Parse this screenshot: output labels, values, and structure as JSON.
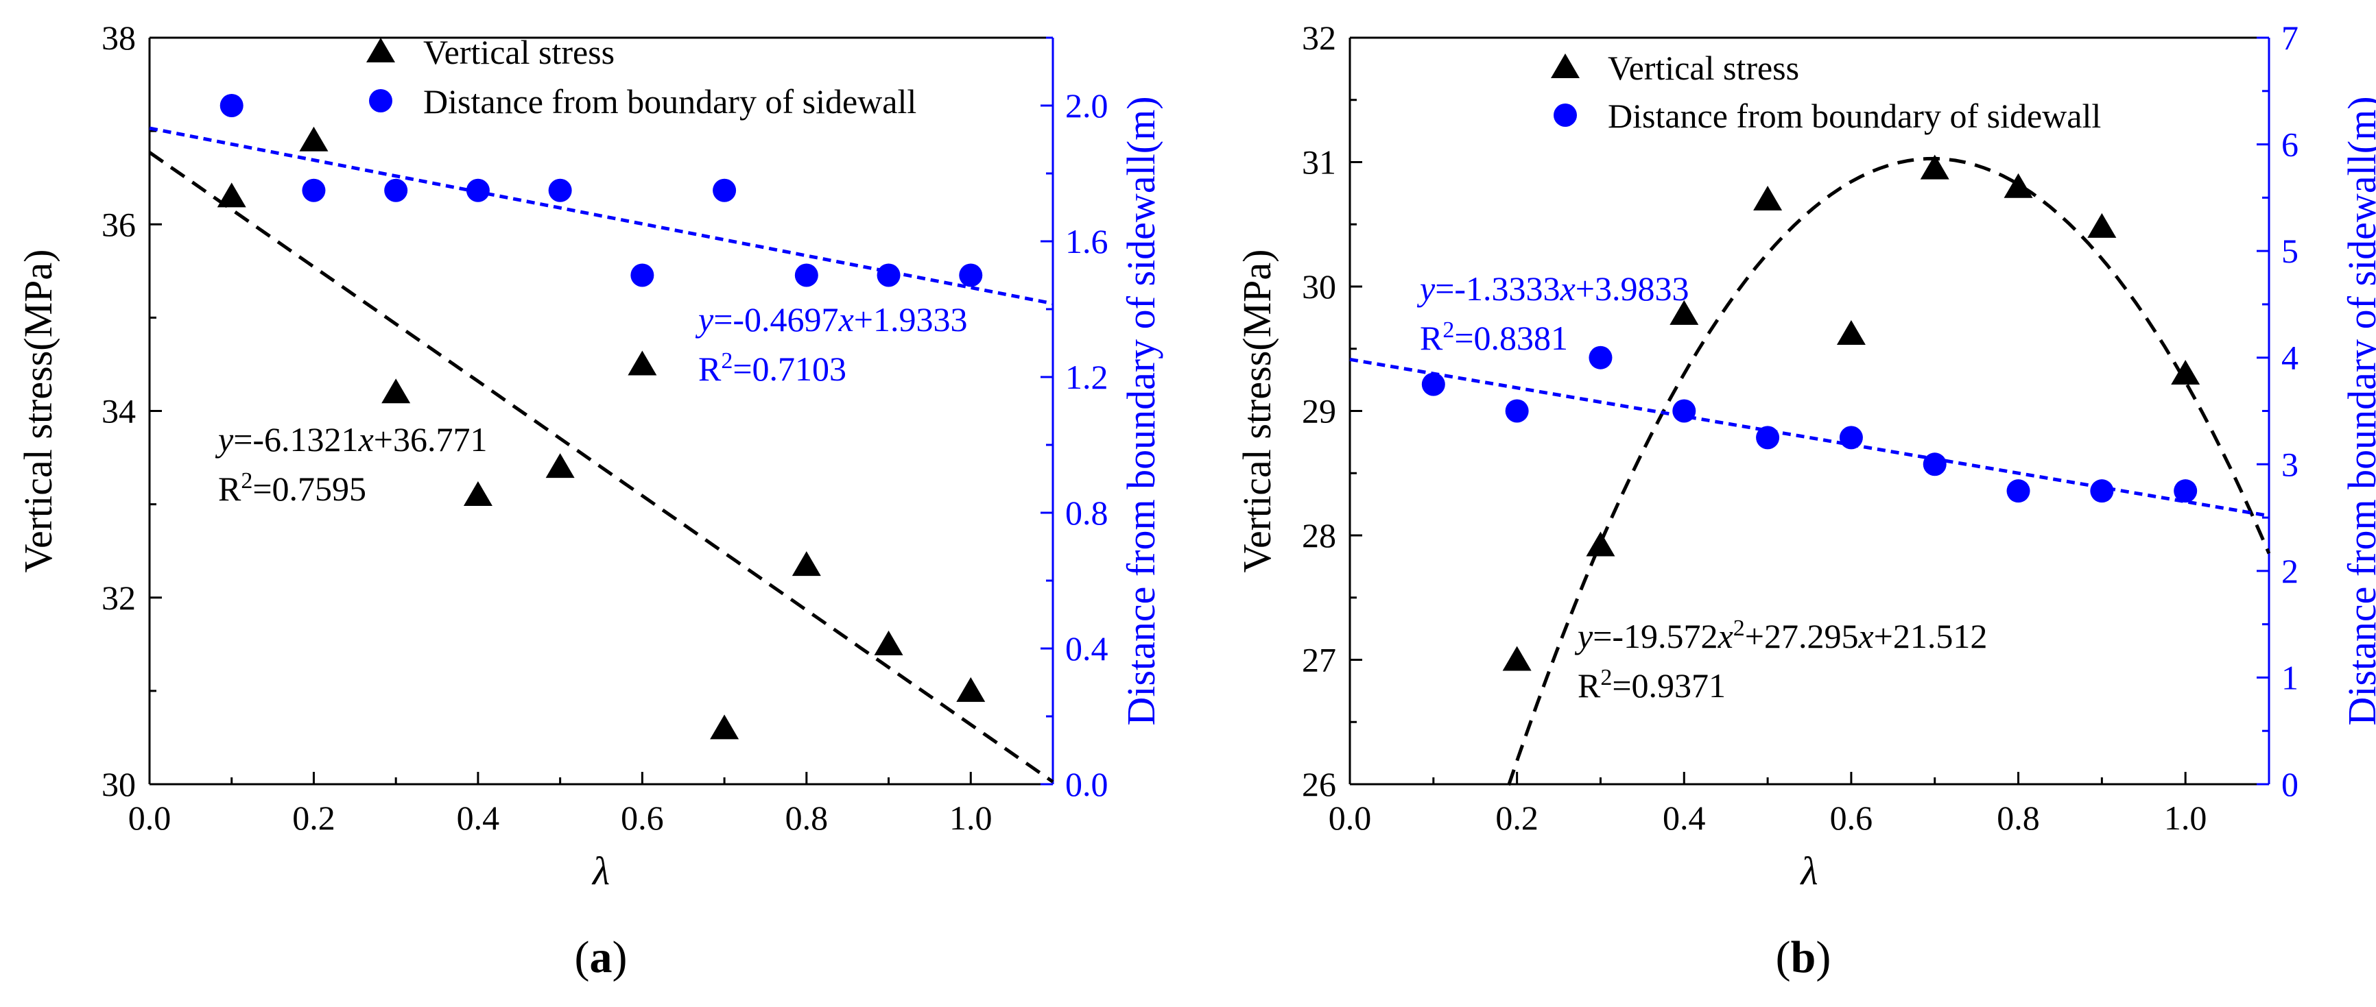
{
  "chart_data": [
    {
      "type": "scatter",
      "panel_label": {
        "open": "(",
        "letter": "a",
        "close": ")"
      },
      "xlabel": "λ",
      "ylabel": "Vertical stress(MPa)",
      "ylabel_right": "Distance from boundary of sidewall(m)",
      "xlim": [
        0,
        1.1
      ],
      "ylim": [
        30,
        38
      ],
      "ylim_right": [
        0,
        2.2
      ],
      "x_ticks": [
        0.0,
        0.2,
        0.4,
        0.6,
        0.8,
        1.0
      ],
      "x_tick_labels": [
        "0.0",
        "0.2",
        "0.4",
        "0.6",
        "0.8",
        "1.0"
      ],
      "y_ticks": [
        30,
        32,
        34,
        36,
        38
      ],
      "y_tick_labels": [
        "30",
        "32",
        "34",
        "36",
        "38"
      ],
      "y_right_ticks": [
        0.0,
        0.4,
        0.8,
        1.2,
        1.6,
        2.0
      ],
      "y_right_tick_labels": [
        "0.0",
        "0.4",
        "0.8",
        "1.2",
        "1.6",
        "2.0"
      ],
      "legend_position": "top",
      "series": [
        {
          "name": "Vertical stress",
          "marker": "triangle",
          "color": "#000000",
          "axis": "left",
          "x": [
            0.1,
            0.2,
            0.3,
            0.4,
            0.5,
            0.6,
            0.7,
            0.8,
            0.9,
            1.0
          ],
          "y": [
            36.3,
            36.9,
            34.2,
            33.1,
            33.4,
            34.5,
            30.6,
            32.35,
            31.5,
            31.0
          ]
        },
        {
          "name": "Distance from boundary of sidewall",
          "marker": "circle",
          "color": "#0000ff",
          "axis": "right",
          "x": [
            0.1,
            0.2,
            0.3,
            0.4,
            0.5,
            0.6,
            0.7,
            0.8,
            0.9,
            1.0
          ],
          "y": [
            2.0,
            1.75,
            1.75,
            1.75,
            1.75,
            1.5,
            1.75,
            1.5,
            1.5,
            1.5
          ]
        }
      ],
      "fits": [
        {
          "axis": "left",
          "color": "#000000",
          "dash": "dashed",
          "coef": [
            36.771,
            -6.1321
          ],
          "x_range": [
            0,
            1.1
          ]
        },
        {
          "axis": "right",
          "color": "#0000ff",
          "dash": "dotted",
          "coef": [
            1.9333,
            -0.4697
          ],
          "x_range": [
            0,
            1.1
          ]
        }
      ],
      "annotations": [
        {
          "color": "#0000ff",
          "eq": "=-0.4697",
          "tail": "+1.9333",
          "r2": "=0.7103"
        },
        {
          "color": "#000000",
          "eq": "=-6.1321",
          "tail": "+36.771",
          "r2": "=0.7595"
        }
      ]
    },
    {
      "type": "scatter",
      "panel_label": {
        "open": "(",
        "letter": "b",
        "close": ")"
      },
      "xlabel": "λ",
      "ylabel": "Vertical stress(MPa)",
      "ylabel_right": "Distance from boundary of sidewall(m)",
      "xlim": [
        0,
        1.1
      ],
      "ylim": [
        26,
        32
      ],
      "ylim_right": [
        0,
        7
      ],
      "x_ticks": [
        0.0,
        0.2,
        0.4,
        0.6,
        0.8,
        1.0
      ],
      "x_tick_labels": [
        "0.0",
        "0.2",
        "0.4",
        "0.6",
        "0.8",
        "1.0"
      ],
      "y_ticks": [
        26,
        27,
        28,
        29,
        30,
        31,
        32
      ],
      "y_tick_labels": [
        "26",
        "27",
        "28",
        "29",
        "30",
        "31",
        "32"
      ],
      "y_right_ticks": [
        0,
        1,
        2,
        3,
        4,
        5,
        6,
        7
      ],
      "y_right_tick_labels": [
        "0",
        "1",
        "2",
        "3",
        "4",
        "5",
        "6",
        "7"
      ],
      "legend_position": "top",
      "series": [
        {
          "name": "Vertical stress",
          "marker": "triangle",
          "color": "#000000",
          "axis": "left",
          "x": [
            0.2,
            0.3,
            0.4,
            0.5,
            0.6,
            0.7,
            0.8,
            0.9,
            1.0
          ],
          "y": [
            27.0,
            27.92,
            29.78,
            30.7,
            29.62,
            30.95,
            30.8,
            30.48,
            29.3
          ]
        },
        {
          "name": "Distance from boundary of sidewall",
          "marker": "circle",
          "color": "#0000ff",
          "axis": "right",
          "x": [
            0.1,
            0.2,
            0.3,
            0.4,
            0.5,
            0.6,
            0.7,
            0.8,
            0.9,
            1.0
          ],
          "y": [
            3.75,
            3.5,
            4.0,
            3.5,
            3.25,
            3.25,
            3.0,
            2.75,
            2.75,
            2.75
          ]
        }
      ],
      "fits": [
        {
          "axis": "left",
          "color": "#000000",
          "dash": "dashed",
          "coef": [
            21.512,
            27.295,
            -19.572
          ],
          "x_range": [
            0.19,
            1.1
          ]
        },
        {
          "axis": "right",
          "color": "#0000ff",
          "dash": "dotted",
          "coef": [
            3.9833,
            -1.3333
          ],
          "x_range": [
            0,
            1.1
          ]
        }
      ],
      "annotations": [
        {
          "color": "#0000ff",
          "eq": "=-1.3333",
          "tail": "+3.9833",
          "r2": "=0.8381"
        },
        {
          "color": "#000000",
          "eq": "=-19.572",
          "x2": "+27.295",
          "tail": "+21.512",
          "r2": "=0.9371"
        }
      ]
    }
  ]
}
